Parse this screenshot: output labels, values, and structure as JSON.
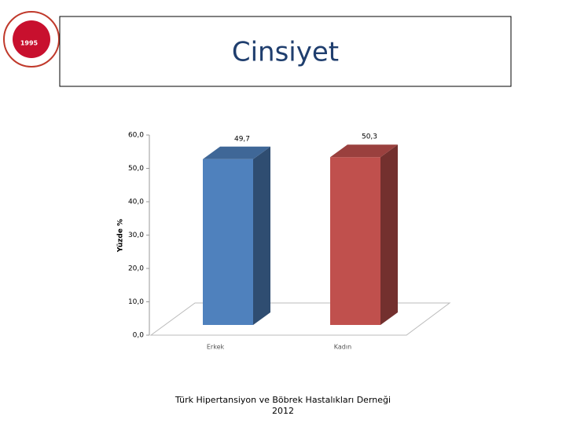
{
  "header": {
    "title": "Cinsiyet",
    "logo_year": "1995"
  },
  "chart_data": {
    "type": "bar3d",
    "y_label": "Yüzde %",
    "categories": [
      "Erkek",
      "Kadın"
    ],
    "values": [
      49.7,
      50.3
    ],
    "value_labels": [
      "49,7",
      "50,3"
    ],
    "colors": [
      "#4f81bd",
      "#c0504d"
    ],
    "ylim": [
      0,
      60
    ],
    "yticks": [
      {
        "value": 0,
        "label": "0,0"
      },
      {
        "value": 10,
        "label": "10,0"
      },
      {
        "value": 20,
        "label": "20,0"
      },
      {
        "value": 30,
        "label": "30,0"
      },
      {
        "value": 40,
        "label": "40,0"
      },
      {
        "value": 50,
        "label": "50,0"
      },
      {
        "value": 60,
        "label": "60,0"
      }
    ]
  },
  "footer": {
    "line1": "Türk Hipertansiyon ve Böbrek Hastalıkları Derneği",
    "line2": "2012"
  }
}
